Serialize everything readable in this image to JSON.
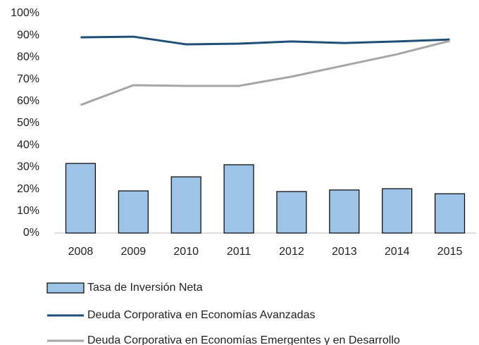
{
  "chart_data": {
    "type": "bar",
    "categories": [
      "2008",
      "2009",
      "2010",
      "2011",
      "2012",
      "2013",
      "2014",
      "2015"
    ],
    "series": [
      {
        "name": "Tasa de Inversión Neta",
        "type": "bar",
        "color": "#9dc3e6",
        "values": [
          31.7,
          19.2,
          25.6,
          31.1,
          18.9,
          19.6,
          20.2,
          17.9
        ]
      },
      {
        "name": "Deuda Corporativa en Economías Avanzadas",
        "type": "line",
        "color": "#1f4e79",
        "values": [
          89.1,
          89.4,
          85.9,
          86.2,
          87.2,
          86.5,
          87.2,
          88.1
        ]
      },
      {
        "name": "Deuda Corporativa en Economías Emergentes y en Desarrollo",
        "type": "line",
        "color": "#a6a6a6",
        "values": [
          58.3,
          67.3,
          67.0,
          67.0,
          71.2,
          76.3,
          81.4,
          87.5
        ]
      }
    ],
    "ylim": [
      0,
      100
    ],
    "yticks": [
      {
        "value": 0,
        "label": "0%"
      },
      {
        "value": 10,
        "label": "10%"
      },
      {
        "value": 20,
        "label": "20%"
      },
      {
        "value": 30,
        "label": "30%"
      },
      {
        "value": 40,
        "label": "40%"
      },
      {
        "value": 50,
        "label": "50%"
      },
      {
        "value": 60,
        "label": "60%"
      },
      {
        "value": 70,
        "label": "70%"
      },
      {
        "value": 80,
        "label": "80%"
      },
      {
        "value": 90,
        "label": "90%"
      },
      {
        "value": 100,
        "label": "100%"
      }
    ],
    "grid": false,
    "legend": "bottom"
  }
}
